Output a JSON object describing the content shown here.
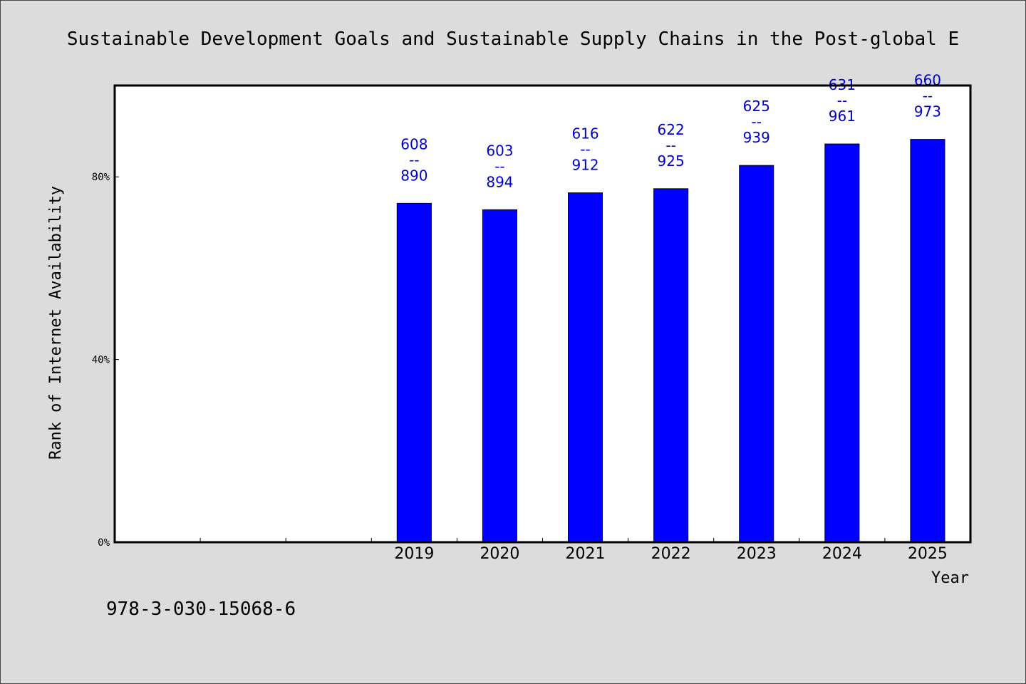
{
  "chart_data": {
    "type": "bar",
    "title": "Sustainable Development Goals and Sustainable Supply Chains in the Post-global E",
    "xlabel": "Year",
    "ylabel": "Rank of Internet Availability",
    "categories": [
      "",
      "",
      "",
      "2019",
      "2020",
      "2021",
      "2022",
      "2023",
      "2024",
      "2025"
    ],
    "series": [
      {
        "values": [
          null,
          null,
          null,
          74.2,
          72.8,
          76.5,
          77.4,
          82.5,
          87.2,
          88.2
        ],
        "labels": [
          null,
          null,
          null,
          {
            "top": "608",
            "sep": "--",
            "bottom": "890"
          },
          {
            "top": "603",
            "sep": "--",
            "bottom": "894"
          },
          {
            "top": "616",
            "sep": "--",
            "bottom": "912"
          },
          {
            "top": "622",
            "sep": "--",
            "bottom": "925"
          },
          {
            "top": "625",
            "sep": "--",
            "bottom": "939"
          },
          {
            "top": "631",
            "sep": "--",
            "bottom": "961"
          },
          {
            "top": "660",
            "sep": "--",
            "bottom": "973"
          }
        ]
      }
    ],
    "ylim": [
      0,
      100
    ],
    "yticks": [
      {
        "value": 0,
        "label": "0%"
      },
      {
        "value": 40,
        "label": "40%"
      },
      {
        "value": 80,
        "label": "80%"
      }
    ],
    "grid": false,
    "legend": "none",
    "colors": {
      "bar": "#0000ff",
      "bar_edge": "#000000",
      "data_label": "#0000cc",
      "plot_background": "#ffffff",
      "figure_background": "#dcdcdc"
    }
  },
  "footer": {
    "isbn": "978-3-030-15068-6"
  }
}
